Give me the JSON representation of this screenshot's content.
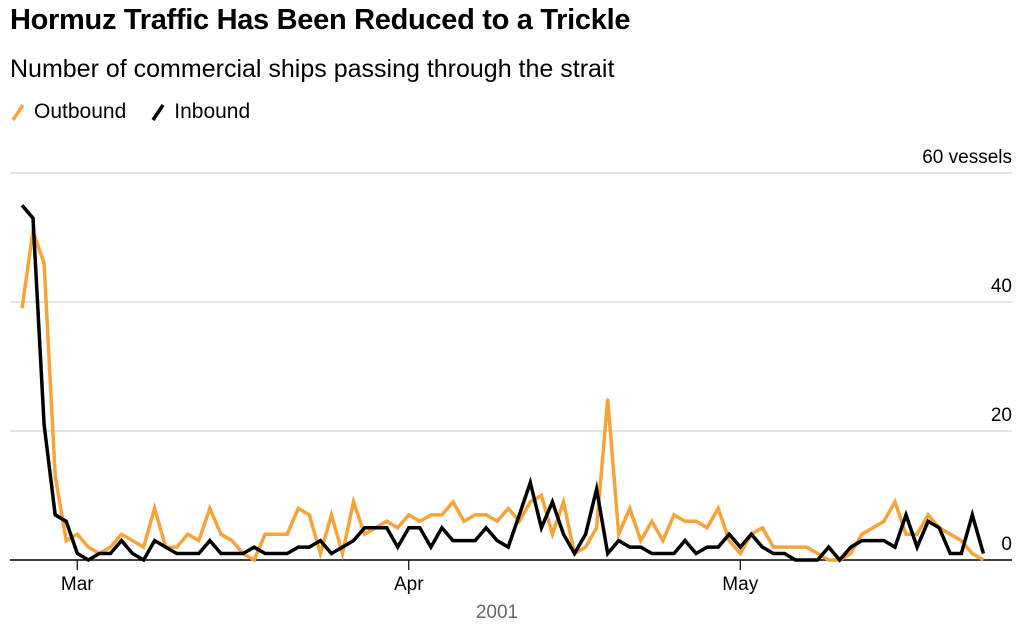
{
  "chart_data": {
    "type": "line",
    "title": "Hormuz Traffic Has Been Reduced to a Trickle",
    "subtitle": "Number of commercial ships passing through the strait",
    "ylim": [
      0,
      60
    ],
    "y_ticks": [
      {
        "value": 60,
        "label": "60 vessels"
      },
      {
        "value": 40,
        "label": "40"
      },
      {
        "value": 20,
        "label": "20"
      },
      {
        "value": 0,
        "label": "0"
      }
    ],
    "x_ticks": [
      {
        "index": 5,
        "label": "Mar"
      },
      {
        "index": 35,
        "label": "Apr"
      },
      {
        "index": 65,
        "label": "May"
      }
    ],
    "x_year_label": "2001",
    "grid": true,
    "legend_position": "top-left",
    "series": [
      {
        "name": "Outbound",
        "color": "#f7a33a",
        "values": [
          39,
          51,
          46,
          13,
          3,
          4,
          2,
          1,
          2,
          4,
          3,
          2,
          8,
          2,
          2,
          4,
          3,
          8,
          4,
          3,
          1,
          0,
          4,
          4,
          4,
          8,
          7,
          1,
          7,
          1,
          9,
          4,
          5,
          6,
          5,
          7,
          6,
          7,
          7,
          9,
          6,
          7,
          7,
          6,
          8,
          6,
          9,
          10,
          4,
          9,
          1,
          2,
          5,
          25,
          4,
          8,
          3,
          6,
          3,
          7,
          6,
          6,
          5,
          8,
          3,
          1,
          4,
          5,
          2,
          2,
          2,
          2,
          1,
          0,
          0,
          1,
          4,
          5,
          6,
          9,
          4,
          4,
          7,
          5,
          4,
          3,
          1,
          0
        ]
      },
      {
        "name": "Inbound",
        "color": "#000000",
        "values": [
          55,
          53,
          21,
          7,
          6,
          1,
          0,
          1,
          1,
          3,
          1,
          0,
          3,
          2,
          1,
          1,
          1,
          3,
          1,
          1,
          1,
          2,
          1,
          1,
          1,
          2,
          2,
          3,
          1,
          2,
          3,
          5,
          5,
          5,
          2,
          5,
          5,
          2,
          5,
          3,
          3,
          3,
          5,
          3,
          2,
          7,
          12,
          5,
          9,
          4,
          1,
          4,
          11,
          1,
          3,
          2,
          2,
          1,
          1,
          1,
          3,
          1,
          2,
          2,
          4,
          2,
          4,
          2,
          1,
          1,
          0,
          0,
          0,
          2,
          0,
          2,
          3,
          3,
          3,
          2,
          7,
          2,
          6,
          5,
          1,
          1,
          7,
          1
        ]
      }
    ]
  },
  "legend": {
    "outbound": {
      "label": "Outbound",
      "color": "#f7a33a"
    },
    "inbound": {
      "label": "Inbound",
      "color": "#000000"
    }
  }
}
